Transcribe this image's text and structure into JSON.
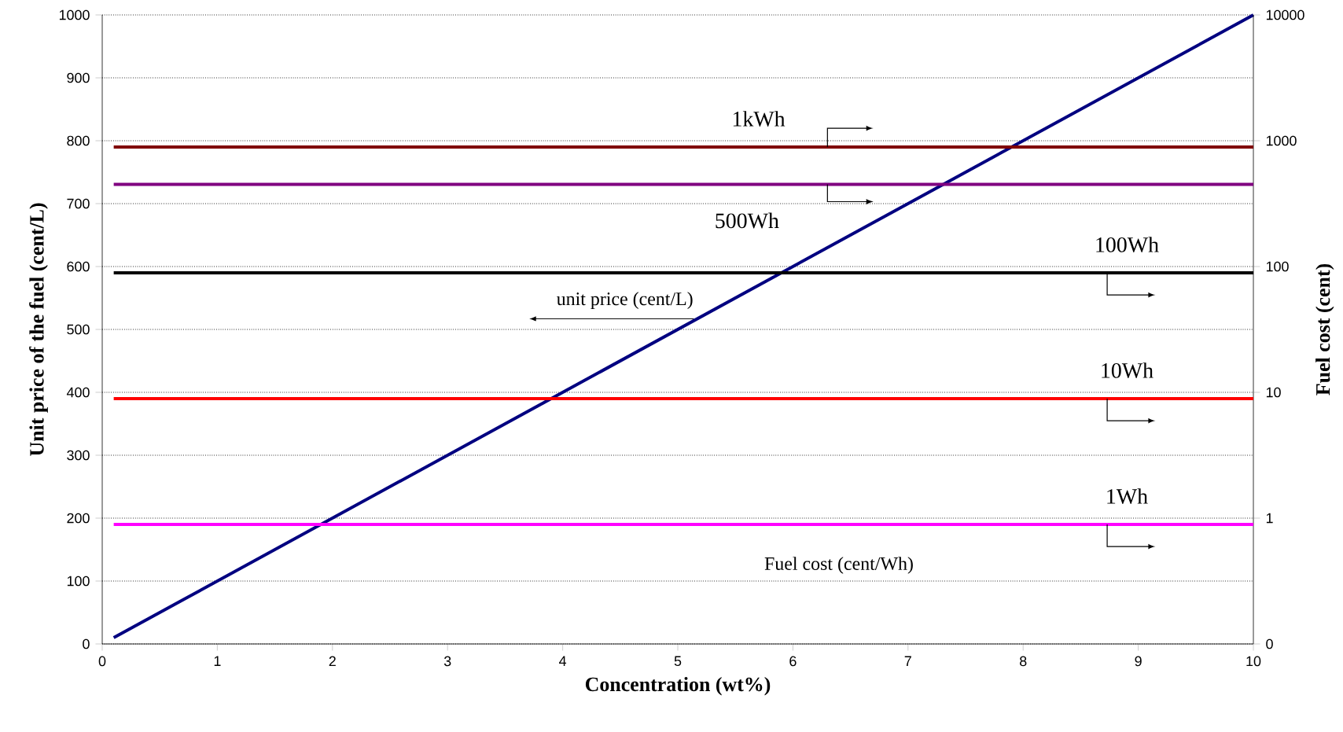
{
  "chart_data": {
    "type": "line",
    "xlabel": "Concentration (wt%)",
    "ylabel": "Unit price of the fuel (cent/L)",
    "y2label": "Fuel cost (cent)",
    "x": [
      0.1,
      10
    ],
    "xlim": [
      0,
      10
    ],
    "xticks": [
      0,
      1,
      2,
      3,
      4,
      5,
      6,
      7,
      8,
      9,
      10
    ],
    "ylim": [
      0,
      1000
    ],
    "yticks": [
      0,
      100,
      200,
      300,
      400,
      500,
      600,
      700,
      800,
      900,
      1000
    ],
    "y2lim": [
      0.1,
      10000
    ],
    "y2ticks": [
      {
        "value": 0.1,
        "label": "0"
      },
      1,
      10,
      100,
      1000,
      10000
    ],
    "log": "y2",
    "grid": "y",
    "series": [
      {
        "color": "#000080",
        "values": [
          10,
          1000
        ]
      },
      {
        "name": "1kWh",
        "color": "#800000",
        "axis": "y2",
        "values": [
          890,
          890
        ]
      },
      {
        "name": "500Wh",
        "color": "#800080",
        "axis": "y2",
        "values": [
          450,
          450
        ]
      },
      {
        "name": "100Wh",
        "color": "#000000",
        "axis": "y2",
        "values": [
          89,
          89
        ]
      },
      {
        "name": "10Wh",
        "color": "#ff0000",
        "axis": "y2",
        "values": [
          8.9,
          8.9
        ]
      },
      {
        "name": "1Wh",
        "color": "#ff00ff",
        "axis": "y2",
        "values": [
          0.89,
          0.89
        ]
      }
    ],
    "annotations": [
      "unit price (cent/L)",
      "Fuel cost (cent/Wh)"
    ]
  }
}
